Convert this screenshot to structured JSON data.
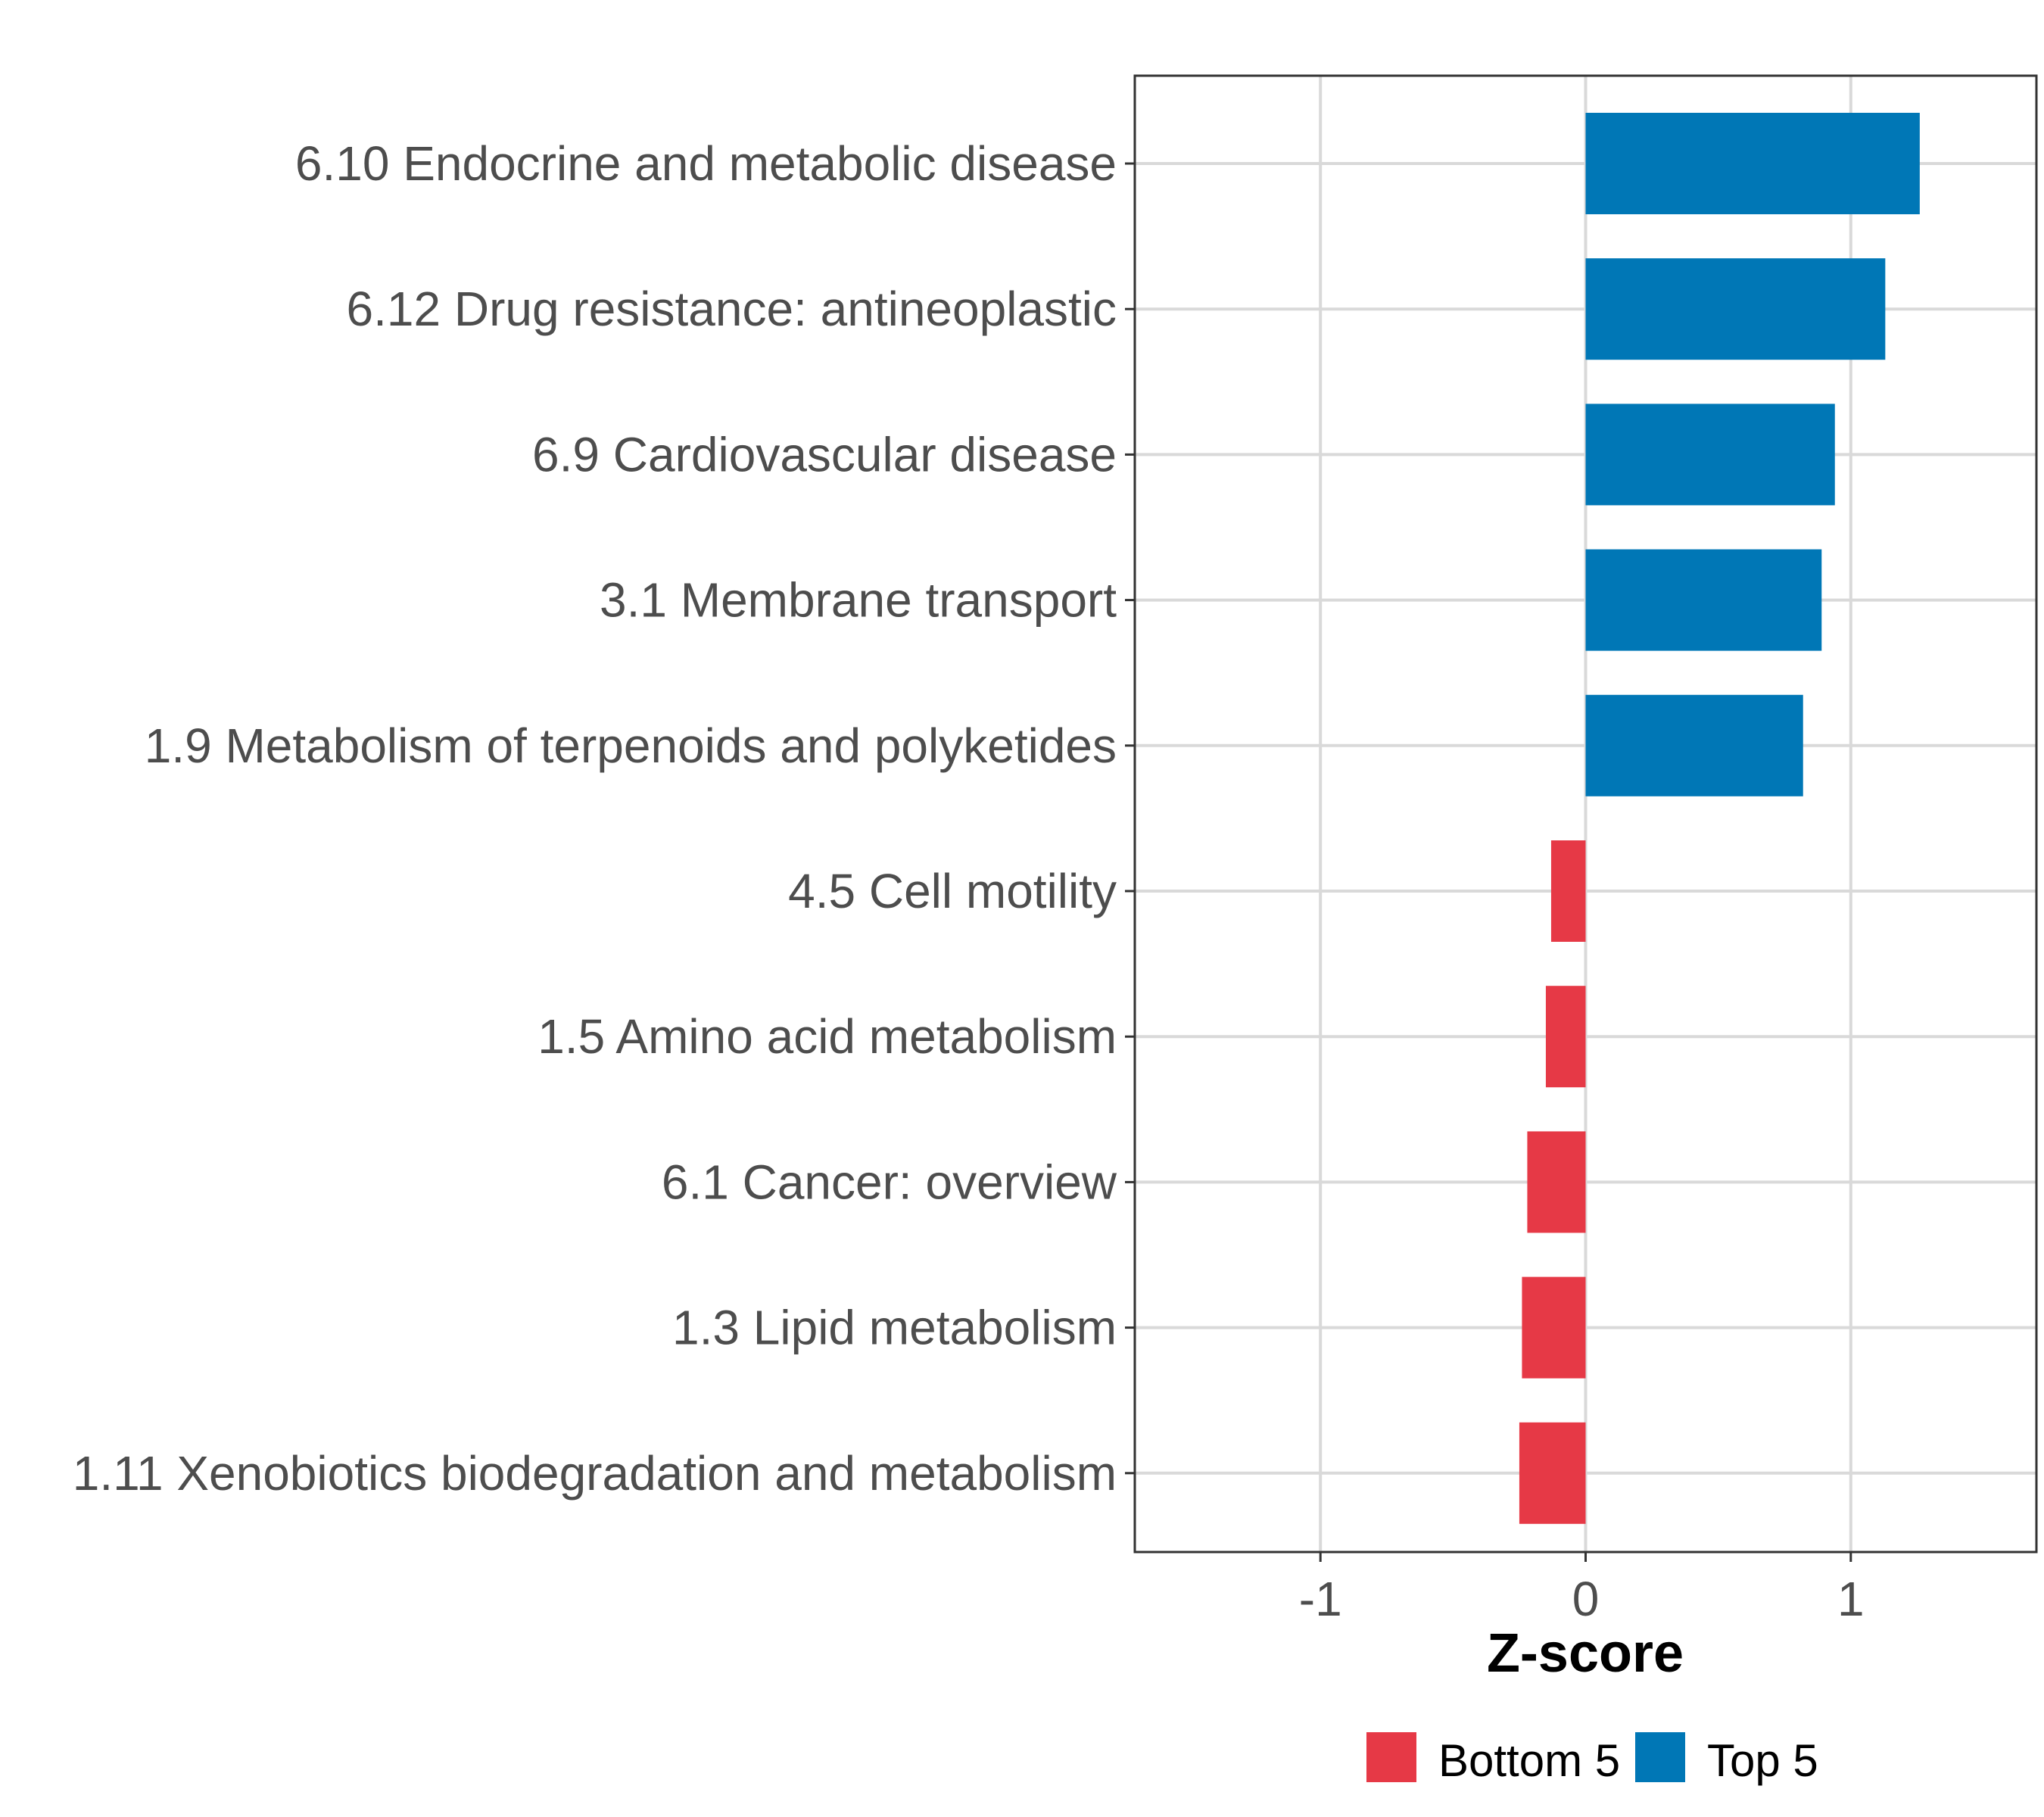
{
  "chart_data": {
    "type": "bar",
    "orientation": "horizontal",
    "title": "",
    "xlabel": "Z-score",
    "ylabel": "",
    "xlim": [
      -1.7,
      1.7
    ],
    "x_ticks": [
      -1,
      0,
      1
    ],
    "x_tick_labels": [
      "-1",
      "0",
      "1"
    ],
    "grid": true,
    "categories": [
      "6.10 Endocrine and metabolic disease",
      "6.12 Drug resistance: antineoplastic",
      "6.9 Cardiovascular disease",
      "3.1 Membrane transport",
      "1.9 Metabolism of terpenoids and polyketides",
      "4.5 Cell motility",
      "1.5 Amino acid metabolism",
      "6.1 Cancer: overview",
      "1.3 Lipid metabolism",
      "1.11 Xenobiotics biodegradation and metabolism"
    ],
    "values": [
      1.26,
      1.13,
      0.94,
      0.89,
      0.82,
      -0.13,
      -0.15,
      -0.22,
      -0.24,
      -0.25
    ],
    "groups": [
      "Top 5",
      "Top 5",
      "Top 5",
      "Top 5",
      "Top 5",
      "Bottom 5",
      "Bottom 5",
      "Bottom 5",
      "Bottom 5",
      "Bottom 5"
    ],
    "legend": {
      "position": "bottom",
      "entries": [
        {
          "name": "Bottom 5",
          "color": "#e63946"
        },
        {
          "name": "Top 5",
          "color": "#0077b6"
        }
      ]
    }
  }
}
